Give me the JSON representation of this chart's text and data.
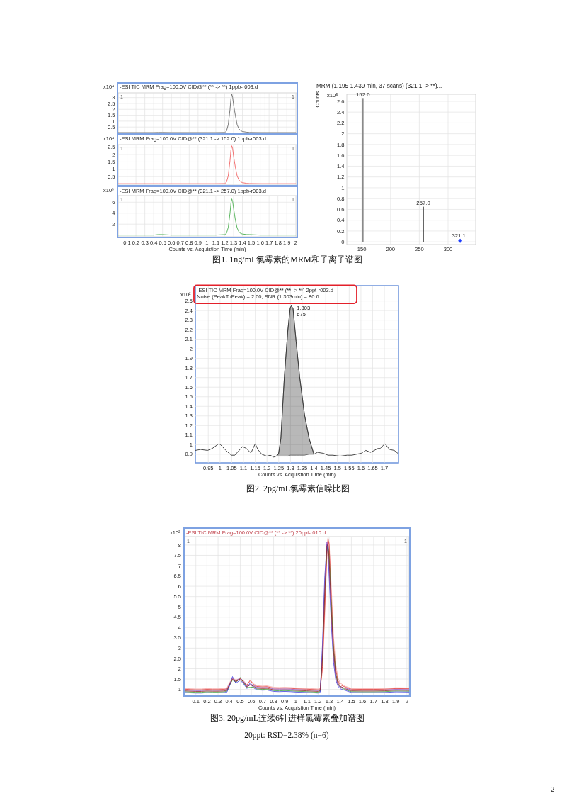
{
  "chart_data": [
    {
      "type": "line",
      "title": "-ESI TIC MRM Frag=100.0V CID@** (** -> **) 1ppb-r003.d",
      "ylabel": "x10⁴",
      "x": [
        0,
        0.2,
        0.4,
        0.45,
        0.5,
        0.6,
        0.8,
        1.0,
        1.1,
        1.2,
        1.22,
        1.24,
        1.26,
        1.27,
        1.28,
        1.29,
        1.3,
        1.32,
        1.34,
        1.36,
        1.38,
        1.4,
        1.45,
        1.48,
        1.6,
        1.8,
        2.0
      ],
      "series": [
        {
          "color": "#6b6b6b",
          "values": [
            0.03,
            0.03,
            0.03,
            0.04,
            0.04,
            0.03,
            0.03,
            0.03,
            0.03,
            0.04,
            0.15,
            0.7,
            2.0,
            2.9,
            3.3,
            3.0,
            2.4,
            1.5,
            0.7,
            0.35,
            0.2,
            0.12,
            0.06,
            0.04,
            0.03,
            0.03,
            0.03
          ]
        }
      ],
      "xlim": [
        0,
        2.01
      ],
      "ylim": [
        -0.03,
        3.4
      ],
      "xticks": [
        0.1,
        0.2,
        0.3,
        0.4,
        0.5,
        0.6,
        0.7,
        0.8,
        0.9,
        1,
        1.1,
        1.2,
        1.3,
        1.4,
        1.5,
        1.6,
        1.7,
        1.8,
        1.9,
        2
      ],
      "yticks": [
        0.5,
        1,
        1.5,
        2,
        2.5,
        3
      ],
      "grid": true,
      "tick_labels": "y",
      "ref_lines": [
        {
          "axis": "x",
          "value": 1.655,
          "color": "#4a4a4a"
        }
      ],
      "annotations": [
        "1",
        "1"
      ]
    },
    {
      "type": "line",
      "title": "-ESI MRM Frag=100.0V CID@** (321.1 -> 152.0) 1ppb-r003.d",
      "ylabel": "x10⁴",
      "x": [
        0,
        0.2,
        0.4,
        0.45,
        0.5,
        0.6,
        0.8,
        1.0,
        1.1,
        1.2,
        1.22,
        1.24,
        1.26,
        1.27,
        1.28,
        1.29,
        1.3,
        1.32,
        1.34,
        1.36,
        1.38,
        1.4,
        1.45,
        1.48,
        1.6,
        1.8,
        2.0
      ],
      "series": [
        {
          "color": "#f06464",
          "values": [
            0.02,
            0.02,
            0.02,
            0.02,
            0.02,
            0.02,
            0.02,
            0.02,
            0.02,
            0.03,
            0.12,
            0.55,
            1.6,
            2.3,
            2.6,
            2.4,
            1.9,
            1.15,
            0.55,
            0.28,
            0.15,
            0.09,
            0.04,
            0.03,
            0.02,
            0.02,
            0.02
          ]
        }
      ],
      "xlim": [
        0,
        2.01
      ],
      "ylim": [
        -0.07,
        2.68
      ],
      "xticks": [
        0.1,
        0.2,
        0.3,
        0.4,
        0.5,
        0.6,
        0.7,
        0.8,
        0.9,
        1,
        1.1,
        1.2,
        1.3,
        1.4,
        1.5,
        1.6,
        1.7,
        1.8,
        1.9,
        2
      ],
      "yticks": [
        0.5,
        1,
        1.5,
        2,
        2.5
      ],
      "grid": true,
      "tick_labels": "y",
      "annotations": [
        "1",
        "1"
      ]
    },
    {
      "type": "line",
      "title": "-ESI MRM Frag=100.0V CID@** (321.1 -> 257.0) 1ppb-r003.d",
      "ylabel": "x10³",
      "xlabel": "Counts vs. Acquistion Time (min)",
      "x": [
        0,
        0.2,
        0.4,
        0.45,
        0.5,
        0.6,
        0.8,
        1.0,
        1.1,
        1.2,
        1.22,
        1.24,
        1.26,
        1.27,
        1.28,
        1.29,
        1.3,
        1.32,
        1.34,
        1.36,
        1.38,
        1.4,
        1.45,
        1.48,
        1.6,
        1.8,
        2.0
      ],
      "series": [
        {
          "color": "#4caf50",
          "values": [
            0,
            0,
            0,
            0.1,
            0.1,
            0,
            0,
            0,
            0,
            0.1,
            0.3,
            1.4,
            4.0,
            5.8,
            6.6,
            6.1,
            4.9,
            2.8,
            1.3,
            0.6,
            0.3,
            0.2,
            0.1,
            0.1,
            0,
            0,
            0
          ]
        }
      ],
      "xlim": [
        0,
        2.01
      ],
      "ylim": [
        -0.3,
        7.2
      ],
      "xticks": [
        0.1,
        0.2,
        0.3,
        0.4,
        0.5,
        0.6,
        0.7,
        0.8,
        0.9,
        1,
        1.1,
        1.2,
        1.3,
        1.4,
        1.5,
        1.6,
        1.7,
        1.8,
        1.9,
        2
      ],
      "yticks": [
        2,
        4,
        6
      ],
      "grid": true,
      "annotations": [
        "1",
        "1"
      ]
    },
    {
      "type": "bar",
      "title": "- MRM (1.195-1.439 min, 37 scans) (321.1 -> **)...",
      "ylabel": "Counts",
      "x": [
        152.0,
        257.0
      ],
      "series": [
        {
          "colors": [
            "#8a8a8a",
            "#1a1a1a"
          ],
          "values": [
            2.66,
            0.65
          ]
        },
        {
          "type": "scatter",
          "x": [
            321.1
          ],
          "values": [
            0.02
          ],
          "color": "#1f3fff",
          "marker": "diamond"
        }
      ],
      "xlim": [
        124,
        348
      ],
      "ylim": [
        -0.05,
        2.73
      ],
      "xticks": [
        150,
        200,
        250,
        300
      ],
      "yticks": [
        0,
        0.2,
        0.4,
        0.6,
        0.8,
        1,
        1.2,
        1.4,
        1.6,
        1.8,
        2,
        2.2,
        2.4,
        2.6
      ],
      "grid": true,
      "annotations": [
        {
          "text": "152.0",
          "x": 152.0,
          "y": 2.66
        },
        {
          "text": "257.0",
          "x": 257.0,
          "y": 0.65
        },
        {
          "text": "321.1",
          "x": 321.1,
          "y": 0.02
        },
        "x10⁵",
        "图1. 1ng/mL氯霉素的MRM和子离子谱图"
      ]
    },
    {
      "type": "line",
      "title": "-ESI TIC MRM Frag=100.0V CID@** (** -> **) 2ppt-r003.d",
      "subtitle": "Noise (PeakToPeak) = 2.00; SNR (1.303min) = 80.6",
      "ylabel": "x10²",
      "xlabel": "Counts vs. Acquistion Time (min)",
      "x": [
        0.895,
        0.917,
        0.947,
        0.967,
        0.995,
        1.002,
        1.025,
        1.048,
        1.063,
        1.096,
        1.113,
        1.128,
        1.133,
        1.15,
        1.161,
        1.178,
        1.199,
        1.214,
        1.229,
        1.239,
        1.249,
        1.259,
        1.274,
        1.289,
        1.299,
        1.304,
        1.311,
        1.324,
        1.339,
        1.36,
        1.38,
        1.4,
        1.415,
        1.44,
        1.46,
        1.48,
        1.511,
        1.541,
        1.561,
        1.581,
        1.601,
        1.621,
        1.641,
        1.657,
        1.672,
        1.682,
        1.702,
        1.722,
        1.742,
        1.757
      ],
      "series": [
        {
          "color": "#333333",
          "values": [
            0.94,
            0.95,
            0.94,
            0.96,
            1.01,
            1.0,
            0.94,
            0.89,
            0.89,
            0.98,
            0.96,
            0.92,
            0.92,
            1.01,
            0.95,
            0.9,
            0.88,
            0.89,
            0.87,
            0.88,
            0.9,
            1.06,
            1.71,
            2.2,
            2.43,
            2.45,
            2.42,
            2.08,
            1.71,
            1.31,
            1.06,
            0.9,
            0.92,
            0.91,
            0.89,
            0.89,
            0.88,
            0.89,
            0.89,
            0.9,
            0.91,
            0.94,
            0.92,
            0.94,
            0.96,
            0.96,
            1.01,
            0.95,
            0.94,
            0.91
          ],
          "lower": [
            null,
            null,
            null,
            null,
            null,
            null,
            null,
            null,
            null,
            null,
            null,
            null,
            null,
            null,
            null,
            null,
            null,
            null,
            null,
            0.88,
            0.88,
            0.88,
            0.88,
            0.88,
            0.89,
            0.89,
            0.89,
            0.89,
            0.89,
            0.89,
            0.9,
            0.9,
            null,
            null,
            null,
            null,
            null,
            null,
            null,
            null,
            null,
            null,
            null,
            null,
            null,
            null,
            null,
            null,
            null,
            null
          ],
          "upper": [
            null,
            null,
            null,
            null,
            null,
            null,
            null,
            null,
            null,
            null,
            null,
            null,
            null,
            null,
            null,
            null,
            null,
            null,
            null,
            0.88,
            0.9,
            1.06,
            1.71,
            2.2,
            2.43,
            2.45,
            2.42,
            2.08,
            1.71,
            1.31,
            1.06,
            0.9,
            null,
            null,
            null,
            null,
            null,
            null,
            null,
            null,
            null,
            null,
            null,
            null,
            null,
            null,
            null,
            null,
            null,
            null
          ]
        }
      ],
      "xlim": [
        0.895,
        1.76
      ],
      "ylim": [
        0.81,
        2.66
      ],
      "xticks": [
        0.95,
        1,
        1.05,
        1.1,
        1.15,
        1.2,
        1.25,
        1.3,
        1.35,
        1.4,
        1.45,
        1.5,
        1.55,
        1.6,
        1.65,
        1.7
      ],
      "yticks": [
        0.9,
        1,
        1.1,
        1.2,
        1.3,
        1.4,
        1.5,
        1.6,
        1.7,
        1.8,
        1.9,
        2,
        2.1,
        2.2,
        2.3,
        2.4,
        2.5
      ],
      "grid": true,
      "annotations": [
        {
          "text": "1.303",
          "x": 1.303,
          "y": 2.45
        },
        {
          "text": "675",
          "x": 1.303,
          "y": 2.45
        },
        "图2. 2pg/mL氯霉素信噪比图"
      ]
    },
    {
      "type": "line",
      "title": "-ESI TIC MRM Frag=100.0V CID@** (** -> **) 20ppt-r010.d",
      "ylabel": "x10²",
      "xlabel": "Counts vs. Acquistion Time (min)",
      "x": [
        0,
        0.05,
        0.1,
        0.15,
        0.2,
        0.25,
        0.3,
        0.35,
        0.38,
        0.4,
        0.43,
        0.46,
        0.5,
        0.53,
        0.56,
        0.59,
        0.62,
        0.65,
        0.7,
        0.74,
        0.8,
        0.85,
        0.9,
        0.95,
        1.0,
        1.1,
        1.2,
        1.22,
        1.24,
        1.26,
        1.28,
        1.29,
        1.3,
        1.32,
        1.34,
        1.36,
        1.38,
        1.4,
        1.45,
        1.5,
        1.6,
        1.7,
        1.8,
        1.9,
        2.02
      ],
      "series": [
        {
          "color": "#f4a0a0",
          "values": [
            1.05,
            1.03,
            1.02,
            1.02,
            1.04,
            1.03,
            1.03,
            1.04,
            1.07,
            1.3,
            1.54,
            1.46,
            1.52,
            1.42,
            1.22,
            1.4,
            1.27,
            1.18,
            1.16,
            1.17,
            1.1,
            1.09,
            1.1,
            1.09,
            1.07,
            1.05,
            1.02,
            1.07,
            1.9,
            4.5,
            7.4,
            8.2,
            8.15,
            5.9,
            3.5,
            2.2,
            1.55,
            1.3,
            1.14,
            1.05,
            1.04,
            1.04,
            1.05,
            1.08,
            1.07
          ]
        },
        {
          "color": "#e03030",
          "values": [
            1.01,
            0.99,
            0.98,
            0.98,
            1.0,
            0.99,
            0.99,
            1.0,
            1.03,
            1.18,
            1.47,
            1.38,
            1.5,
            1.36,
            1.2,
            1.45,
            1.23,
            1.14,
            1.12,
            1.13,
            1.06,
            1.05,
            1.06,
            1.05,
            1.03,
            1.01,
            0.98,
            1.03,
            2.1,
            4.9,
            7.6,
            8.35,
            8.0,
            5.4,
            3.1,
            1.95,
            1.42,
            1.22,
            1.1,
            1.01,
            1.0,
            1.0,
            1.01,
            1.04,
            1.03
          ]
        },
        {
          "color": "#3a9a3a",
          "values": [
            0.89,
            0.87,
            0.86,
            0.86,
            0.88,
            0.87,
            0.87,
            0.88,
            0.91,
            1.16,
            1.46,
            1.34,
            1.58,
            1.31,
            1.08,
            1.1,
            1.11,
            1.02,
            1.0,
            1.01,
            0.94,
            0.93,
            0.94,
            0.93,
            0.91,
            0.89,
            0.86,
            0.91,
            2.7,
            5.8,
            7.75,
            7.95,
            7.55,
            5.1,
            2.95,
            1.8,
            1.26,
            1.1,
            0.98,
            0.89,
            0.88,
            0.88,
            0.89,
            0.92,
            0.91
          ]
        },
        {
          "color": "#4040e0",
          "values": [
            0.85,
            0.83,
            0.82,
            0.82,
            0.84,
            0.83,
            0.83,
            0.84,
            0.87,
            1.12,
            1.62,
            1.3,
            1.45,
            1.27,
            1.04,
            1.33,
            1.07,
            0.98,
            0.96,
            0.97,
            0.9,
            0.89,
            0.9,
            0.89,
            0.87,
            0.85,
            0.82,
            0.87,
            3.2,
            6.4,
            8.05,
            7.6,
            6.5,
            4.1,
            2.3,
            1.45,
            1.16,
            1.03,
            0.94,
            0.85,
            0.84,
            0.84,
            0.85,
            0.88,
            0.87
          ]
        },
        {
          "color": "#9050c0",
          "values": [
            0.97,
            0.95,
            0.94,
            0.94,
            0.96,
            0.95,
            0.95,
            0.96,
            0.99,
            1.24,
            1.54,
            1.42,
            1.55,
            1.39,
            1.16,
            1.26,
            1.19,
            1.1,
            1.08,
            1.09,
            1.02,
            1.01,
            1.02,
            1.01,
            0.99,
            0.97,
            0.94,
            0.99,
            2.9,
            6.0,
            8.15,
            7.9,
            6.9,
            4.4,
            2.5,
            1.55,
            1.22,
            1.1,
            1.06,
            0.97,
            0.96,
            0.96,
            0.97,
            1.0,
            0.99
          ]
        },
        {
          "color": "#8b2323",
          "values": [
            0.93,
            0.91,
            0.9,
            0.9,
            0.92,
            0.91,
            0.91,
            0.92,
            0.95,
            1.2,
            1.5,
            1.38,
            1.51,
            1.35,
            1.12,
            1.22,
            1.15,
            1.06,
            1.04,
            1.05,
            0.98,
            0.97,
            0.98,
            0.97,
            0.95,
            0.93,
            0.9,
            0.95,
            2.5,
            5.5,
            7.95,
            8.05,
            7.3,
            4.8,
            2.8,
            1.7,
            1.3,
            1.15,
            1.02,
            0.93,
            0.92,
            0.92,
            0.93,
            0.96,
            0.95
          ]
        }
      ],
      "xlim": [
        0,
        2.02
      ],
      "ylim": [
        0.71,
        8.41
      ],
      "xticks": [
        0.1,
        0.2,
        0.3,
        0.4,
        0.5,
        0.6,
        0.7,
        0.8,
        0.9,
        1,
        1.1,
        1.2,
        1.3,
        1.4,
        1.5,
        1.6,
        1.7,
        1.8,
        1.9,
        2
      ],
      "yticks": [
        1,
        1.5,
        2,
        2.5,
        3,
        3.5,
        4,
        4.5,
        5,
        5.5,
        6,
        6.5,
        7,
        7.5,
        8
      ],
      "grid": true,
      "annotations": [
        "1",
        "1",
        "图3. 20pg/mL连续6针进样氯霉素叠加谱图",
        "20ppt: RSD=2.38% (n=6)",
        "2"
      ]
    }
  ]
}
